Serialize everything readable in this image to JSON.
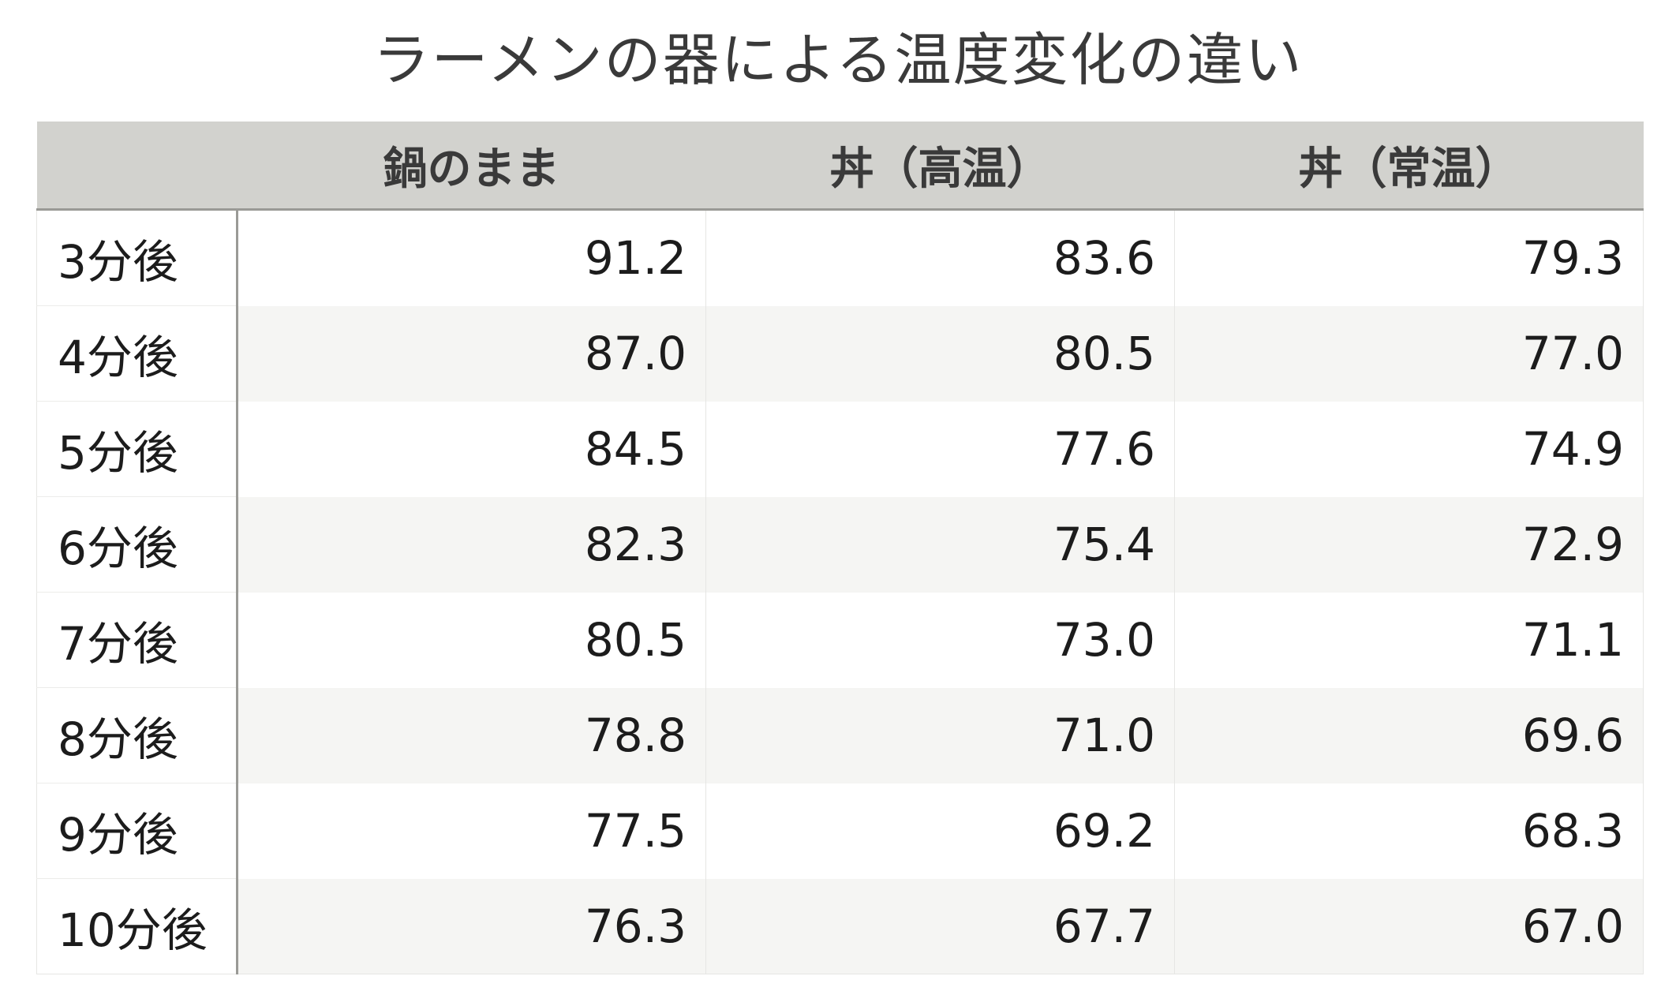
{
  "chart_data": {
    "type": "table",
    "title": "ラーメンの器による温度変化の違い",
    "columns": [
      "",
      "鍋のまま",
      "丼（高温）",
      "丼（常温）"
    ],
    "rows": [
      {
        "label": "3分後",
        "values": [
          "91.2",
          "83.6",
          "79.3"
        ]
      },
      {
        "label": "4分後",
        "values": [
          "87.0",
          "80.5",
          "77.0"
        ]
      },
      {
        "label": "5分後",
        "values": [
          "84.5",
          "77.6",
          "74.9"
        ]
      },
      {
        "label": "6分後",
        "values": [
          "82.3",
          "75.4",
          "72.9"
        ]
      },
      {
        "label": "7分後",
        "values": [
          "80.5",
          "73.0",
          "71.1"
        ]
      },
      {
        "label": "8分後",
        "values": [
          "78.8",
          "71.0",
          "69.6"
        ]
      },
      {
        "label": "9分後",
        "values": [
          "77.5",
          "69.2",
          "68.3"
        ]
      },
      {
        "label": "10分後",
        "values": [
          "76.3",
          "67.7",
          "67.0"
        ]
      }
    ]
  },
  "colors": {
    "header_bg": "#d2d2ce",
    "stripe_bg": "#f5f5f3",
    "divider": "#9a9a96"
  }
}
